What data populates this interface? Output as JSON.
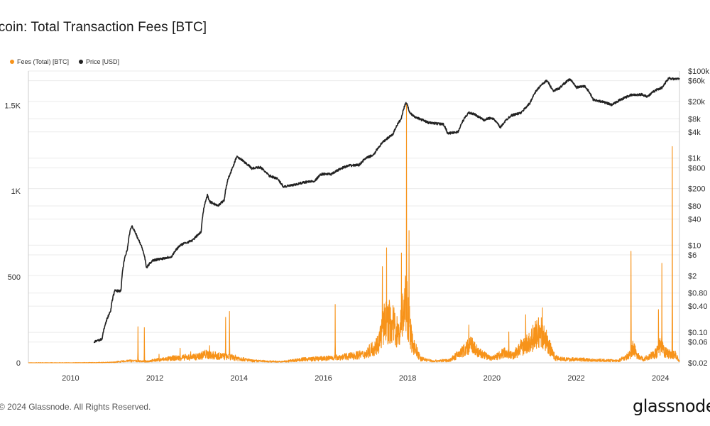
{
  "page": {
    "title": "itcoin: Total Transaction Fees [BTC]",
    "footer": "© 2024 Glassnode. All Rights Reserved.",
    "brand": "glassnode"
  },
  "colors": {
    "fees": "#f7931a",
    "price": "#222222",
    "grid": "#ebebeb",
    "axis": "#cccccc"
  },
  "chart_data": {
    "type": "line",
    "title": "itcoin: Total Transaction Fees [BTC]",
    "legend": {
      "position": "top-left",
      "entries": [
        "Fees (Total) [BTC]",
        "Price [USD]"
      ]
    },
    "grid": true,
    "x_ticks": [
      "2010",
      "2012",
      "2014",
      "2016",
      "2018",
      "2020",
      "2022",
      "2024"
    ],
    "x_range": [
      2009.0,
      2024.45
    ],
    "y_left": {
      "ticks": [
        0,
        500,
        1000,
        1500
      ],
      "tick_labels": [
        "0",
        "500",
        "1K",
        "1.5K"
      ],
      "range": [
        0,
        1700
      ]
    },
    "y_right": {
      "scale": "log",
      "ticks": [
        0.02,
        0.06,
        0.1,
        0.4,
        0.8,
        2,
        6,
        10,
        40,
        80,
        200,
        600,
        1000,
        4000,
        8000,
        20000,
        60000,
        100000
      ],
      "tick_labels": [
        "$0.02",
        "$0.06",
        "$0.10",
        "$0.40",
        "$0.80",
        "$2",
        "$6",
        "$10",
        "$40",
        "$80",
        "$200",
        "$600",
        "$1k",
        "$4k",
        "$8k",
        "$20k",
        "$60k",
        "$100k"
      ],
      "range": [
        0.02,
        100000
      ]
    },
    "series": [
      {
        "name": "Fees (Total) [BTC]",
        "color": "#f7931a",
        "axis": "left",
        "baseline": [
          [
            2009.0,
            0
          ],
          [
            2010.0,
            0
          ],
          [
            2010.5,
            1
          ],
          [
            2011.0,
            3
          ],
          [
            2011.4,
            12
          ],
          [
            2011.8,
            8
          ],
          [
            2012.0,
            15
          ],
          [
            2012.5,
            28
          ],
          [
            2013.0,
            35
          ],
          [
            2013.2,
            50
          ],
          [
            2013.5,
            40
          ],
          [
            2013.9,
            30
          ],
          [
            2014.3,
            12
          ],
          [
            2015.0,
            6
          ],
          [
            2015.5,
            20
          ],
          [
            2016.0,
            25
          ],
          [
            2016.5,
            35
          ],
          [
            2017.0,
            50
          ],
          [
            2017.3,
            110
          ],
          [
            2017.45,
            230
          ],
          [
            2017.6,
            240
          ],
          [
            2017.8,
            160
          ],
          [
            2017.95,
            370
          ],
          [
            2018.1,
            120
          ],
          [
            2018.3,
            25
          ],
          [
            2018.6,
            10
          ],
          [
            2019.0,
            15
          ],
          [
            2019.3,
            65
          ],
          [
            2019.5,
            105
          ],
          [
            2019.7,
            55
          ],
          [
            2020.0,
            25
          ],
          [
            2020.3,
            60
          ],
          [
            2020.5,
            40
          ],
          [
            2020.7,
            90
          ],
          [
            2020.85,
            110
          ],
          [
            2021.0,
            150
          ],
          [
            2021.15,
            180
          ],
          [
            2021.3,
            120
          ],
          [
            2021.5,
            30
          ],
          [
            2021.8,
            20
          ],
          [
            2022.0,
            20
          ],
          [
            2022.5,
            15
          ],
          [
            2023.0,
            12
          ],
          [
            2023.3,
            50
          ],
          [
            2023.35,
            90
          ],
          [
            2023.45,
            40
          ],
          [
            2023.6,
            20
          ],
          [
            2023.9,
            55
          ],
          [
            2024.0,
            100
          ],
          [
            2024.1,
            60
          ],
          [
            2024.25,
            50
          ],
          [
            2024.35,
            45
          ],
          [
            2024.45,
            10
          ]
        ],
        "spikes": [
          [
            2011.6,
            210
          ],
          [
            2011.75,
            205
          ],
          [
            2012.1,
            50
          ],
          [
            2012.6,
            85
          ],
          [
            2012.85,
            65
          ],
          [
            2013.3,
            100
          ],
          [
            2013.68,
            265
          ],
          [
            2013.77,
            300
          ],
          [
            2016.28,
            340
          ],
          [
            2017.4,
            560
          ],
          [
            2017.5,
            670
          ],
          [
            2017.85,
            640
          ],
          [
            2017.97,
            1510
          ],
          [
            2018.03,
            770
          ],
          [
            2019.45,
            220
          ],
          [
            2020.4,
            180
          ],
          [
            2020.8,
            280
          ],
          [
            2021.2,
            320
          ],
          [
            2023.3,
            650
          ],
          [
            2023.95,
            310
          ],
          [
            2024.03,
            580
          ],
          [
            2024.28,
            1260
          ]
        ]
      },
      {
        "name": "Price [USD]",
        "color": "#222222",
        "axis": "right",
        "points": [
          [
            2010.55,
            0.06
          ],
          [
            2010.75,
            0.07
          ],
          [
            2010.95,
            0.3
          ],
          [
            2011.05,
            0.9
          ],
          [
            2011.2,
            0.9
          ],
          [
            2011.35,
            8
          ],
          [
            2011.45,
            28
          ],
          [
            2011.6,
            14
          ],
          [
            2011.8,
            3
          ],
          [
            2011.95,
            4.5
          ],
          [
            2012.2,
            5
          ],
          [
            2012.4,
            5.5
          ],
          [
            2012.6,
            10
          ],
          [
            2012.9,
            13
          ],
          [
            2013.1,
            20
          ],
          [
            2013.25,
            140
          ],
          [
            2013.3,
            100
          ],
          [
            2013.5,
            80
          ],
          [
            2013.65,
            110
          ],
          [
            2013.85,
            600
          ],
          [
            2013.95,
            1100
          ],
          [
            2014.1,
            850
          ],
          [
            2014.3,
            580
          ],
          [
            2014.5,
            620
          ],
          [
            2014.7,
            400
          ],
          [
            2014.9,
            340
          ],
          [
            2015.05,
            220
          ],
          [
            2015.3,
            240
          ],
          [
            2015.55,
            280
          ],
          [
            2015.8,
            300
          ],
          [
            2015.95,
            430
          ],
          [
            2016.2,
            430
          ],
          [
            2016.45,
            600
          ],
          [
            2016.6,
            670
          ],
          [
            2016.85,
            700
          ],
          [
            2017.0,
            980
          ],
          [
            2017.2,
            1200
          ],
          [
            2017.45,
            2500
          ],
          [
            2017.65,
            3500
          ],
          [
            2017.85,
            8000
          ],
          [
            2017.96,
            19000
          ],
          [
            2018.05,
            11000
          ],
          [
            2018.2,
            8500
          ],
          [
            2018.5,
            6500
          ],
          [
            2018.85,
            6000
          ],
          [
            2018.95,
            3700
          ],
          [
            2019.2,
            4000
          ],
          [
            2019.45,
            11000
          ],
          [
            2019.6,
            10000
          ],
          [
            2019.8,
            7500
          ],
          [
            2020.0,
            8500
          ],
          [
            2020.2,
            5000
          ],
          [
            2020.45,
            9500
          ],
          [
            2020.7,
            11000
          ],
          [
            2020.9,
            18000
          ],
          [
            2021.1,
            40000
          ],
          [
            2021.3,
            60000
          ],
          [
            2021.45,
            35000
          ],
          [
            2021.6,
            40000
          ],
          [
            2021.85,
            65000
          ],
          [
            2022.0,
            42000
          ],
          [
            2022.2,
            45000
          ],
          [
            2022.4,
            22000
          ],
          [
            2022.6,
            20000
          ],
          [
            2022.85,
            16500
          ],
          [
            2023.05,
            22000
          ],
          [
            2023.3,
            28000
          ],
          [
            2023.55,
            29000
          ],
          [
            2023.7,
            26000
          ],
          [
            2023.9,
            37000
          ],
          [
            2024.05,
            42000
          ],
          [
            2024.2,
            69000
          ],
          [
            2024.35,
            65000
          ],
          [
            2024.45,
            67000
          ]
        ]
      }
    ]
  }
}
